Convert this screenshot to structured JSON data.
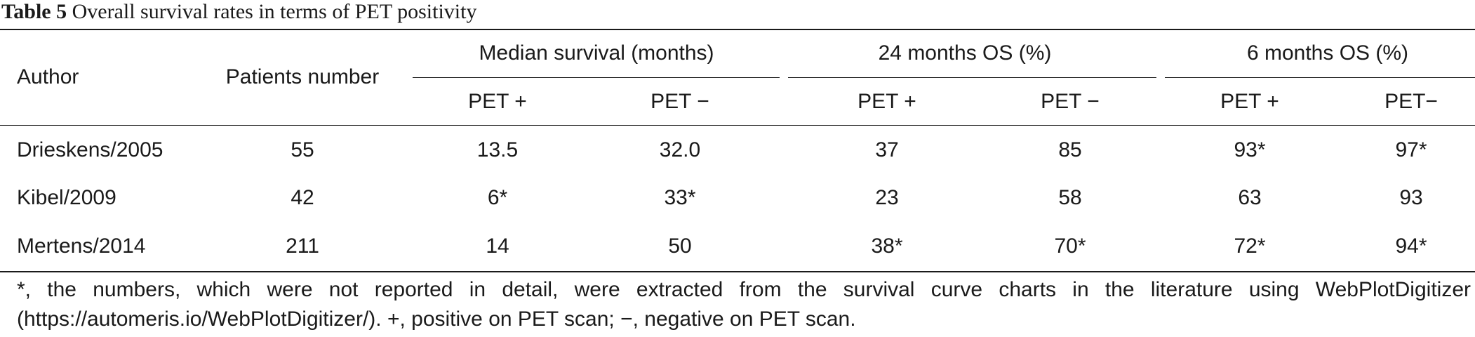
{
  "caption": {
    "label": "Table 5",
    "text": "Overall survival rates in terms of PET positivity"
  },
  "header": {
    "author": "Author",
    "patients": "Patients number",
    "groups": [
      "Median survival (months)",
      "24 months OS (%)",
      "6 months OS (%)"
    ],
    "subheaders": [
      "PET +",
      "PET −",
      "PET +",
      "PET −",
      "PET +",
      "PET−"
    ]
  },
  "rows": [
    {
      "author": "Drieskens/2005",
      "patients": "55",
      "values": [
        "13.5",
        "32.0",
        "37",
        "85",
        "93*",
        "97*"
      ]
    },
    {
      "author": "Kibel/2009",
      "patients": "42",
      "values": [
        "6*",
        "33*",
        "23",
        "58",
        "63",
        "93"
      ]
    },
    {
      "author": "Mertens/2014",
      "patients": "211",
      "values": [
        "14",
        "50",
        "38*",
        "70*",
        "72*",
        "94*"
      ]
    }
  ],
  "footnote": "*, the numbers, which were not reported in detail, were extracted from the survival curve charts in the literature using WebPlotDigitizer (https://automeris.io/WebPlotDigitizer/). +, positive on PET scan; −, negative on PET scan."
}
